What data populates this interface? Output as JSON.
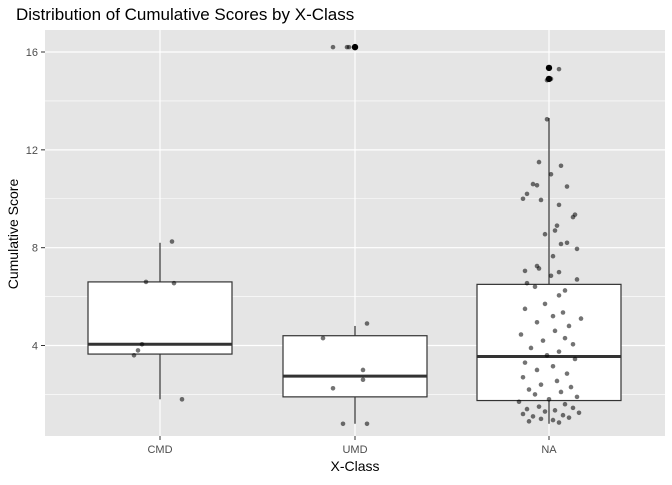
{
  "chart_data": {
    "type": "boxplot",
    "title": "Distribution of Cumulative Scores by X-Class",
    "xlabel": "X-Class",
    "ylabel": "Cumulative Score",
    "categories": [
      "CMD",
      "UMD",
      "NA"
    ],
    "y_ticks": [
      4,
      8,
      12,
      16
    ],
    "ylim": [
      0.3,
      16.9
    ],
    "grid": true,
    "legend": "none",
    "colors": {
      "panel_background": "#e5e5e5",
      "grid": "#ffffff",
      "box_fill": "#ffffff",
      "box_outline": "#333333",
      "points": "#000000"
    },
    "boxes": [
      {
        "category": "CMD",
        "min": 1.8,
        "q1": 3.65,
        "median": 4.05,
        "q3": 6.6,
        "max": 8.2
      },
      {
        "category": "UMD",
        "min": 0.8,
        "q1": 1.9,
        "median": 2.75,
        "q3": 4.4,
        "max": 4.8
      },
      {
        "category": "NA",
        "min": 0.8,
        "q1": 1.75,
        "median": 3.55,
        "q3": 6.5,
        "max": 13.3
      }
    ],
    "outliers": [
      {
        "category": "UMD",
        "y": 16.2
      },
      {
        "category": "NA",
        "y": 14.9
      },
      {
        "category": "NA",
        "y": 15.35
      }
    ],
    "points": [
      {
        "category": "CMD",
        "y": 8.25,
        "jitter": 0.06
      },
      {
        "category": "CMD",
        "y": 6.6,
        "jitter": -0.07
      },
      {
        "category": "CMD",
        "y": 6.55,
        "jitter": 0.07
      },
      {
        "category": "CMD",
        "y": 4.05,
        "jitter": -0.09
      },
      {
        "category": "CMD",
        "y": 3.8,
        "jitter": -0.11
      },
      {
        "category": "CMD",
        "y": 3.6,
        "jitter": -0.13
      },
      {
        "category": "CMD",
        "y": 1.8,
        "jitter": 0.11
      },
      {
        "category": "UMD",
        "y": 16.2,
        "jitter": -0.11
      },
      {
        "category": "UMD",
        "y": 16.2,
        "jitter": -0.04
      },
      {
        "category": "UMD",
        "y": 16.2,
        "jitter": -0.03
      },
      {
        "category": "UMD",
        "y": 4.9,
        "jitter": 0.06
      },
      {
        "category": "UMD",
        "y": 4.3,
        "jitter": -0.16
      },
      {
        "category": "UMD",
        "y": 3.0,
        "jitter": 0.04
      },
      {
        "category": "UMD",
        "y": 2.6,
        "jitter": 0.04
      },
      {
        "category": "UMD",
        "y": 2.25,
        "jitter": -0.11
      },
      {
        "category": "UMD",
        "y": 0.8,
        "jitter": -0.06
      },
      {
        "category": "UMD",
        "y": 0.8,
        "jitter": 0.06
      },
      {
        "category": "NA",
        "y": 15.35,
        "jitter": 0.0
      },
      {
        "category": "NA",
        "y": 15.3,
        "jitter": 0.05
      },
      {
        "category": "NA",
        "y": 14.9,
        "jitter": 0.01
      },
      {
        "category": "NA",
        "y": 14.85,
        "jitter": -0.01
      },
      {
        "category": "NA",
        "y": 13.25,
        "jitter": -0.01
      },
      {
        "category": "NA",
        "y": 11.5,
        "jitter": -0.05
      },
      {
        "category": "NA",
        "y": 11.35,
        "jitter": 0.06
      },
      {
        "category": "NA",
        "y": 11.0,
        "jitter": 0.01
      },
      {
        "category": "NA",
        "y": 10.6,
        "jitter": -0.08
      },
      {
        "category": "NA",
        "y": 10.55,
        "jitter": -0.06
      },
      {
        "category": "NA",
        "y": 10.5,
        "jitter": 0.09
      },
      {
        "category": "NA",
        "y": 10.2,
        "jitter": -0.11
      },
      {
        "category": "NA",
        "y": 10.0,
        "jitter": -0.13
      },
      {
        "category": "NA",
        "y": 9.95,
        "jitter": -0.04
      },
      {
        "category": "NA",
        "y": 9.75,
        "jitter": 0.05
      },
      {
        "category": "NA",
        "y": 9.35,
        "jitter": 0.13
      },
      {
        "category": "NA",
        "y": 9.25,
        "jitter": 0.12
      },
      {
        "category": "NA",
        "y": 8.9,
        "jitter": 0.04
      },
      {
        "category": "NA",
        "y": 8.7,
        "jitter": 0.03
      },
      {
        "category": "NA",
        "y": 8.55,
        "jitter": -0.02
      },
      {
        "category": "NA",
        "y": 8.2,
        "jitter": 0.09
      },
      {
        "category": "NA",
        "y": 8.15,
        "jitter": 0.06
      },
      {
        "category": "NA",
        "y": 7.95,
        "jitter": 0.14
      },
      {
        "category": "NA",
        "y": 7.65,
        "jitter": 0.02
      },
      {
        "category": "NA",
        "y": 7.25,
        "jitter": -0.06
      },
      {
        "category": "NA",
        "y": 7.15,
        "jitter": -0.05
      },
      {
        "category": "NA",
        "y": 7.05,
        "jitter": -0.12
      },
      {
        "category": "NA",
        "y": 7.0,
        "jitter": 0.05
      },
      {
        "category": "NA",
        "y": 6.85,
        "jitter": 0.01
      },
      {
        "category": "NA",
        "y": 6.7,
        "jitter": 0.14
      },
      {
        "category": "NA",
        "y": 6.55,
        "jitter": -0.11
      },
      {
        "category": "NA",
        "y": 6.4,
        "jitter": -0.07
      },
      {
        "category": "NA",
        "y": 6.25,
        "jitter": 0.08
      },
      {
        "category": "NA",
        "y": 6.05,
        "jitter": 0.05
      },
      {
        "category": "NA",
        "y": 5.7,
        "jitter": -0.02
      },
      {
        "category": "NA",
        "y": 5.5,
        "jitter": -0.12
      },
      {
        "category": "NA",
        "y": 5.35,
        "jitter": 0.07
      },
      {
        "category": "NA",
        "y": 5.2,
        "jitter": 0.02
      },
      {
        "category": "NA",
        "y": 5.1,
        "jitter": 0.16
      },
      {
        "category": "NA",
        "y": 4.95,
        "jitter": -0.06
      },
      {
        "category": "NA",
        "y": 4.8,
        "jitter": 0.1
      },
      {
        "category": "NA",
        "y": 4.6,
        "jitter": 0.03
      },
      {
        "category": "NA",
        "y": 4.45,
        "jitter": -0.14
      },
      {
        "category": "NA",
        "y": 4.3,
        "jitter": 0.08
      },
      {
        "category": "NA",
        "y": 4.2,
        "jitter": -0.03
      },
      {
        "category": "NA",
        "y": 4.05,
        "jitter": 0.12
      },
      {
        "category": "NA",
        "y": 3.9,
        "jitter": -0.09
      },
      {
        "category": "NA",
        "y": 3.75,
        "jitter": 0.05
      },
      {
        "category": "NA",
        "y": 3.6,
        "jitter": -0.01
      },
      {
        "category": "NA",
        "y": 3.45,
        "jitter": 0.13
      },
      {
        "category": "NA",
        "y": 3.3,
        "jitter": -0.12
      },
      {
        "category": "NA",
        "y": 3.15,
        "jitter": 0.02
      },
      {
        "category": "NA",
        "y": 3.0,
        "jitter": -0.06
      },
      {
        "category": "NA",
        "y": 2.85,
        "jitter": 0.09
      },
      {
        "category": "NA",
        "y": 2.7,
        "jitter": -0.13
      },
      {
        "category": "NA",
        "y": 2.55,
        "jitter": 0.04
      },
      {
        "category": "NA",
        "y": 2.4,
        "jitter": -0.04
      },
      {
        "category": "NA",
        "y": 2.3,
        "jitter": 0.11
      },
      {
        "category": "NA",
        "y": 2.2,
        "jitter": -0.1
      },
      {
        "category": "NA",
        "y": 2.1,
        "jitter": 0.06
      },
      {
        "category": "NA",
        "y": 2.0,
        "jitter": -0.07
      },
      {
        "category": "NA",
        "y": 1.9,
        "jitter": 0.14
      },
      {
        "category": "NA",
        "y": 1.8,
        "jitter": 0.0
      },
      {
        "category": "NA",
        "y": 1.7,
        "jitter": -0.15
      },
      {
        "category": "NA",
        "y": 1.6,
        "jitter": 0.08
      },
      {
        "category": "NA",
        "y": 1.5,
        "jitter": -0.05
      },
      {
        "category": "NA",
        "y": 1.45,
        "jitter": 0.12
      },
      {
        "category": "NA",
        "y": 1.4,
        "jitter": -0.11
      },
      {
        "category": "NA",
        "y": 1.35,
        "jitter": 0.03
      },
      {
        "category": "NA",
        "y": 1.3,
        "jitter": -0.02
      },
      {
        "category": "NA",
        "y": 1.25,
        "jitter": 0.15
      },
      {
        "category": "NA",
        "y": 1.2,
        "jitter": -0.13
      },
      {
        "category": "NA",
        "y": 1.15,
        "jitter": 0.07
      },
      {
        "category": "NA",
        "y": 1.1,
        "jitter": -0.08
      },
      {
        "category": "NA",
        "y": 1.05,
        "jitter": 0.1
      },
      {
        "category": "NA",
        "y": 1.0,
        "jitter": -0.04
      },
      {
        "category": "NA",
        "y": 0.95,
        "jitter": 0.02
      },
      {
        "category": "NA",
        "y": 0.9,
        "jitter": -0.1
      },
      {
        "category": "NA",
        "y": 0.85,
        "jitter": 0.05
      }
    ]
  }
}
